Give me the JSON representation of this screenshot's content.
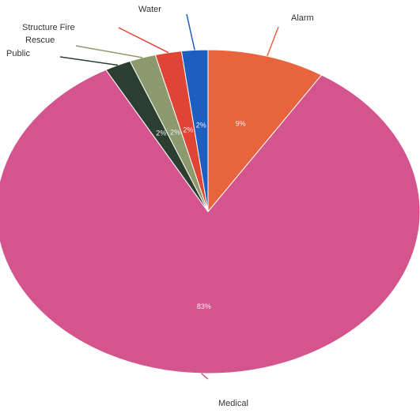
{
  "chart_data": {
    "type": "pie",
    "title": "",
    "slices": [
      {
        "label": "Alarm",
        "value": 9,
        "pct_label": "9%",
        "color": "#e8643c"
      },
      {
        "label": "Medical",
        "value": 83,
        "pct_label": "83%",
        "color": "#d4558e"
      },
      {
        "label": "Public",
        "value": 2,
        "pct_label": "2%",
        "color": "#2c3e30"
      },
      {
        "label": "Rescue",
        "value": 2,
        "pct_label": "2%",
        "color": "#8c9a6e"
      },
      {
        "label": "Structure Fire",
        "value": 2,
        "pct_label": "2%",
        "color": "#e04434"
      },
      {
        "label": "Water",
        "value": 2,
        "pct_label": "2%",
        "color": "#1d5fc0"
      }
    ]
  }
}
